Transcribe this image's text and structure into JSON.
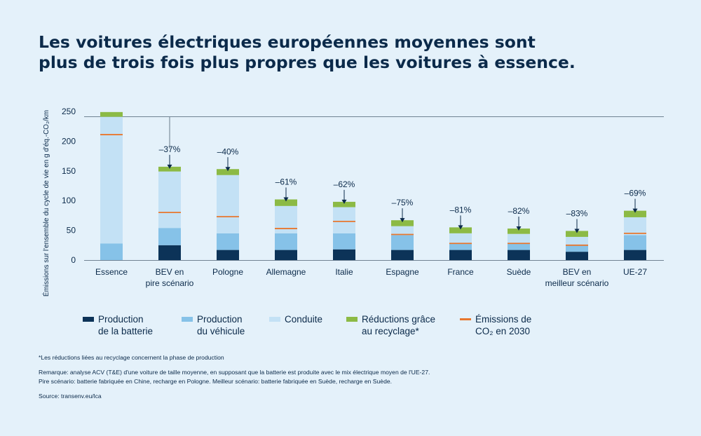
{
  "title": {
    "line1": "Les voitures électriques européennes moyennes sont",
    "line2": "plus de trois fois plus propres que les voitures à essence."
  },
  "colors": {
    "background": "#e4f1fa",
    "battery": "#0c3358",
    "vehicle": "#86c2e8",
    "driving": "#c3e1f5",
    "recycling": "#8cba45",
    "emissions2030": "#e8772e",
    "text": "#0b2a4a",
    "axis": "#4a5d70"
  },
  "chart_data": {
    "type": "bar",
    "stacked": true,
    "ylabel": "Émissions sur l'ensemble du cycle de vie en g d'éq.-CO₂/km",
    "ylim": [
      0,
      250
    ],
    "yticks": [
      "0",
      "50",
      "100",
      "150",
      "200",
      "250"
    ],
    "categories": [
      [
        "Essence"
      ],
      [
        "BEV en",
        "pire scénario"
      ],
      [
        "Pologne"
      ],
      [
        "Allemagne"
      ],
      [
        "Italie"
      ],
      [
        "Espagne"
      ],
      [
        "France"
      ],
      [
        "Suède"
      ],
      [
        "BEV en",
        "meilleur scénario"
      ],
      [
        "UE-27"
      ]
    ],
    "series": [
      {
        "name": "Production de la batterie",
        "key": "battery",
        "values": [
          0,
          25,
          17,
          17,
          18,
          17,
          17,
          17,
          14,
          17
        ]
      },
      {
        "name": "Production du véhicule",
        "key": "vehicle",
        "values": [
          28,
          29,
          28,
          28,
          27,
          25,
          11,
          11,
          11,
          25
        ]
      },
      {
        "name": "Conduite",
        "key": "driving",
        "values": [
          213,
          95,
          98,
          46,
          44,
          15,
          17,
          16,
          14,
          30
        ]
      },
      {
        "name": "Réductions grâce au recyclage",
        "key": "recycling",
        "values": [
          8,
          8,
          10,
          11,
          9,
          10,
          10,
          9,
          10,
          11
        ]
      }
    ],
    "emissions_2030": [
      211,
      80,
      73,
      53,
      65,
      43,
      28,
      28,
      25,
      45
    ],
    "reductions": [
      "",
      "–37%",
      "–40%",
      "–61%",
      "–62%",
      "–75%",
      "–81%",
      "–82%",
      "–83%",
      "–69%"
    ],
    "reference_line": 241
  },
  "legend": [
    {
      "key": "battery",
      "lines": [
        "Production",
        "de la batterie"
      ],
      "swatch": "bar"
    },
    {
      "key": "vehicle",
      "lines": [
        "Production",
        "du véhicule"
      ],
      "swatch": "bar"
    },
    {
      "key": "driving",
      "lines": [
        "Conduite"
      ],
      "swatch": "bar"
    },
    {
      "key": "recycling",
      "lines": [
        "Réductions grâce",
        "au recyclage*"
      ],
      "swatch": "bar"
    },
    {
      "key": "emissions2030",
      "lines": [
        "Émissions de",
        "CO₂ en 2030"
      ],
      "swatch": "line"
    }
  ],
  "notes": {
    "footnote": "*Les réductions liées au recyclage concernent la phase de production",
    "remark": "Remarque: analyse ACV (T&E) d'une voiture de taille moyenne, en supposant que la batterie est produite avec le mix électrique moyen de l'UE-27.",
    "scenarios": "Pire scénario: batterie fabriquée en Chine, recharge en Pologne. Meilleur scénario: batterie fabriquée en Suède, recharge en Suède.",
    "source": "Source: transenv.eu/lca"
  }
}
